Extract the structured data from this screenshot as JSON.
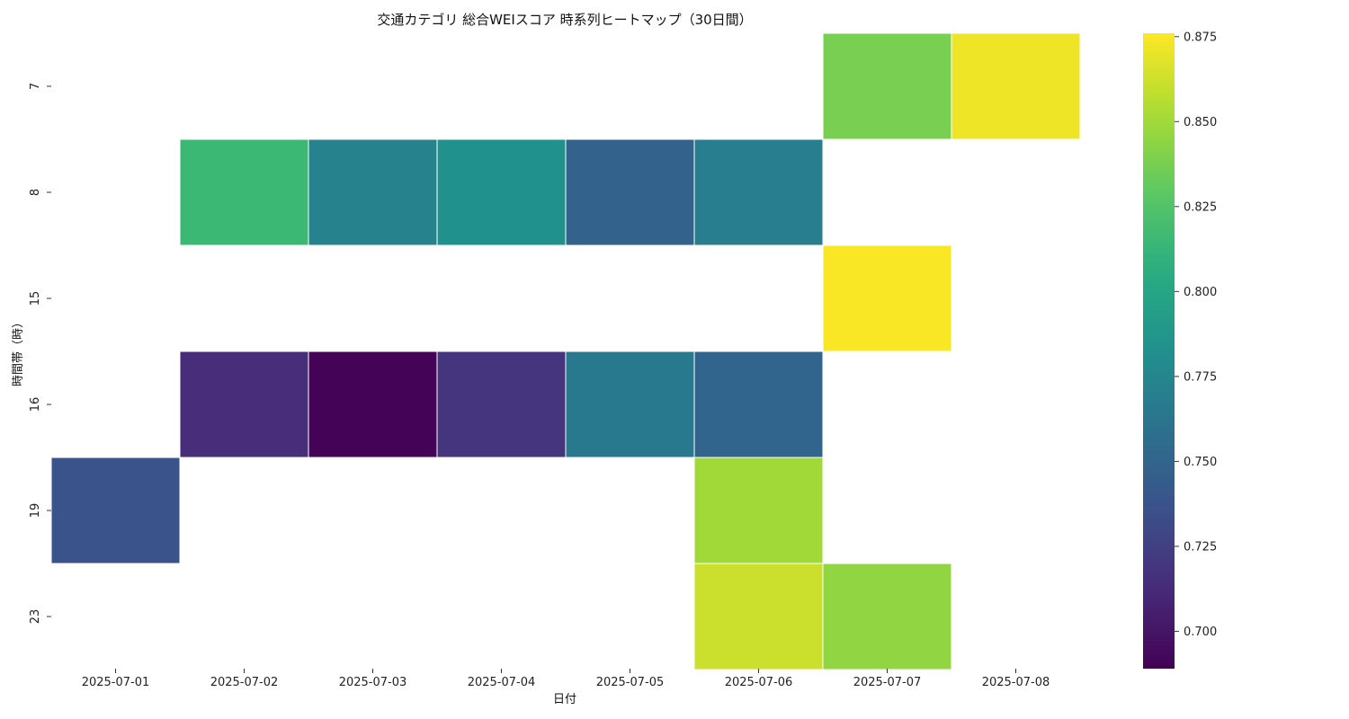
{
  "chart_data": {
    "type": "heatmap",
    "title": "交通カテゴリ 総合WEIスコア 時系列ヒートマップ（30日間）",
    "xlabel": "日付",
    "ylabel": "時間帯（時）",
    "x": [
      "2025-07-01",
      "2025-07-02",
      "2025-07-03",
      "2025-07-04",
      "2025-07-05",
      "2025-07-06",
      "2025-07-07",
      "2025-07-08"
    ],
    "y": [
      "7",
      "8",
      "15",
      "16",
      "19",
      "23"
    ],
    "values": [
      [
        null,
        null,
        null,
        null,
        null,
        null,
        0.838,
        0.872
      ],
      [
        null,
        0.815,
        0.772,
        0.783,
        0.748,
        0.768,
        null,
        null
      ],
      [
        null,
        null,
        null,
        null,
        null,
        null,
        0.875,
        null
      ],
      [
        null,
        0.713,
        0.69,
        0.718,
        0.765,
        0.75,
        null,
        null
      ],
      [
        0.738,
        null,
        null,
        null,
        null,
        0.85,
        null,
        null
      ],
      [
        null,
        null,
        null,
        null,
        null,
        0.862,
        0.845,
        null
      ]
    ],
    "colorscale": "viridis",
    "colorbar": {
      "range": [
        0.689,
        0.876
      ],
      "ticks": [
        "0.700",
        "0.725",
        "0.750",
        "0.775",
        "0.800",
        "0.825",
        "0.850",
        "0.875"
      ]
    },
    "grid": false
  }
}
